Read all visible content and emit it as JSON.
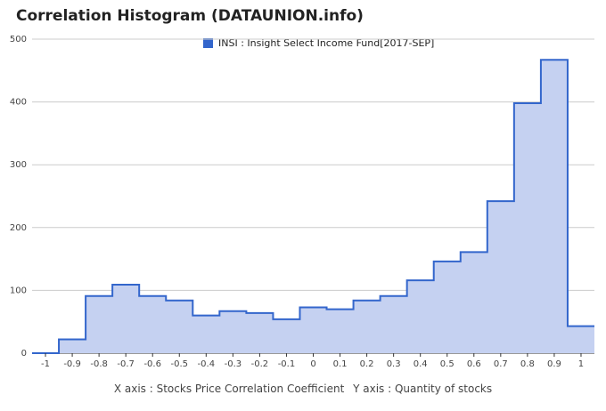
{
  "title": "Correlation Histogram (DATAUNION.info)",
  "footer": {
    "x_label": "X axis : Stocks Price Correlation Coefficient",
    "y_label": "Y axis : Quantity of stocks"
  },
  "colors": {
    "line": "#3366cc",
    "fill": "#c5d1f1",
    "grid": "#cccccc",
    "axis": "#333333"
  },
  "chart_data": {
    "type": "area",
    "step": true,
    "series": [
      {
        "name": "INSI : Insight Select Income Fund[2017-SEP]",
        "x": [
          -1.0,
          -0.9,
          -0.8,
          -0.7,
          -0.6,
          -0.5,
          -0.4,
          -0.3,
          -0.2,
          -0.1,
          0.0,
          0.1,
          0.2,
          0.3,
          0.4,
          0.5,
          0.6,
          0.7,
          0.8,
          0.9,
          1.0
        ],
        "values": [
          0,
          22,
          91,
          109,
          91,
          84,
          60,
          67,
          64,
          54,
          73,
          70,
          84,
          91,
          116,
          146,
          161,
          242,
          398,
          467,
          43
        ]
      }
    ],
    "x_ticks": [
      "-1",
      "-0.9",
      "-0.8",
      "-0.7",
      "-0.6",
      "-0.5",
      "-0.4",
      "-0.3",
      "-0.2",
      "-0.1",
      "0",
      "0.1",
      "0.2",
      "0.3",
      "0.4",
      "0.5",
      "0.6",
      "0.7",
      "0.8",
      "0.9",
      "1"
    ],
    "y_ticks": [
      "0",
      "100",
      "200",
      "300",
      "400",
      "500"
    ],
    "ylim": [
      0,
      500
    ],
    "xlim": [
      -1.05,
      1.05
    ],
    "grid": true,
    "legend": "top"
  }
}
